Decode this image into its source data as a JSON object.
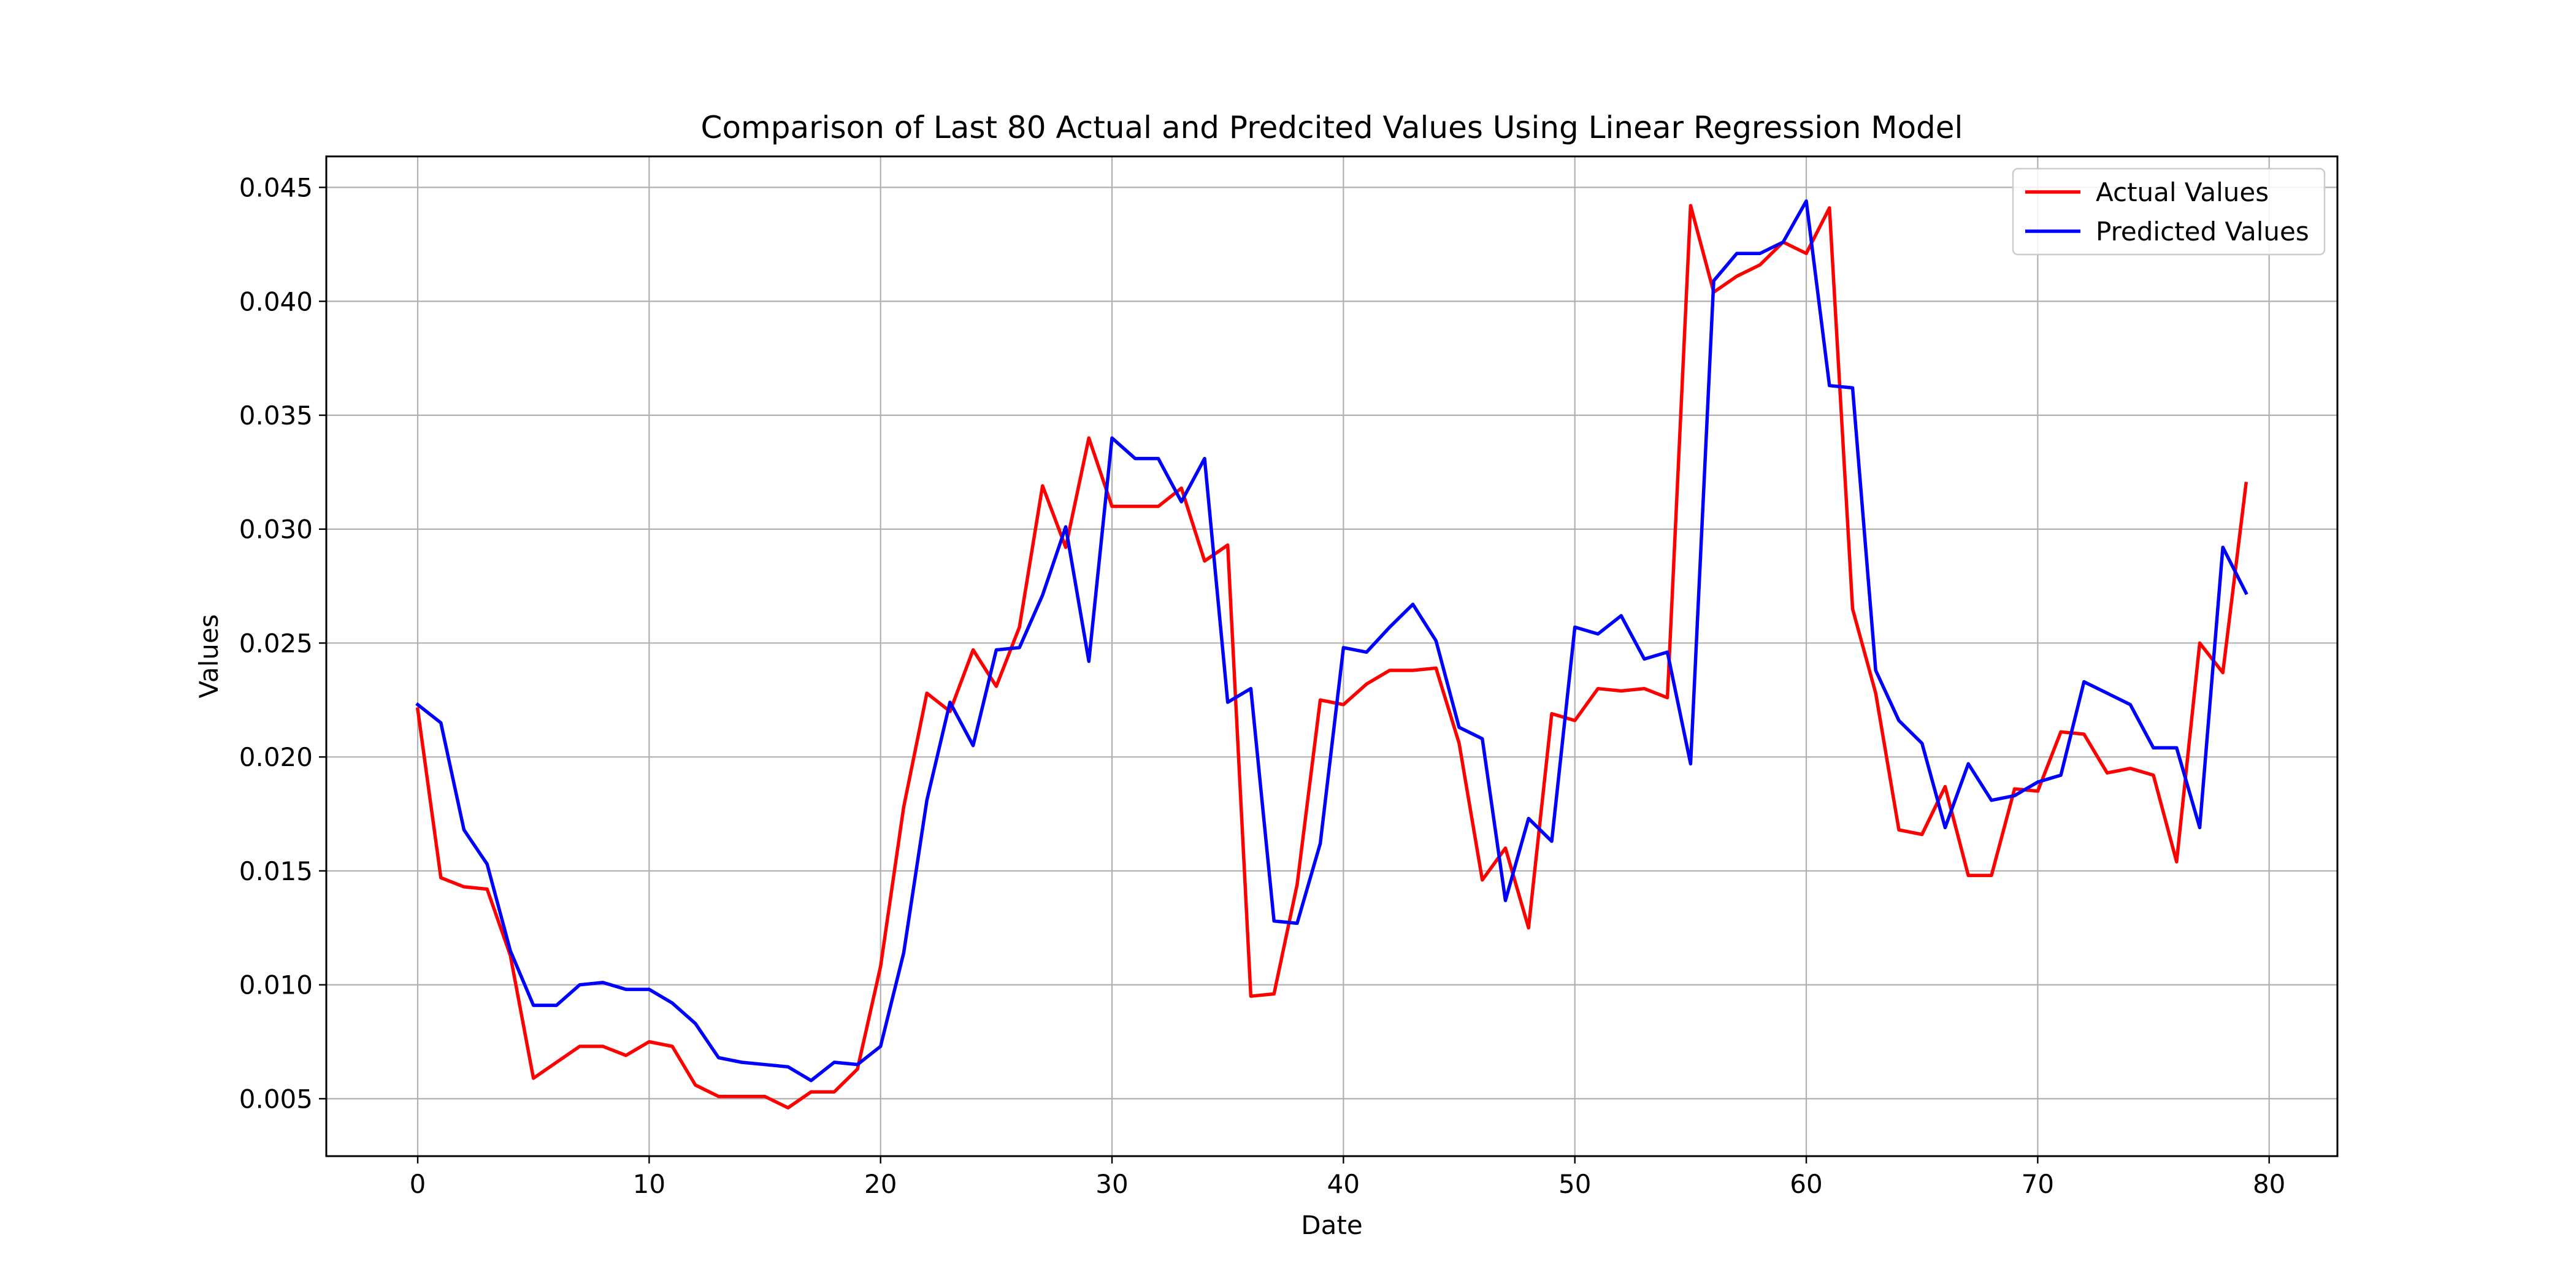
{
  "chart_data": {
    "type": "line",
    "title": "Comparison of Last 80 Actual and Predcited Values Using Linear Regression Model",
    "xlabel": "Date",
    "ylabel": "Values",
    "xlim": [
      -3.95,
      82.95
    ],
    "ylim": [
      0.00248,
      0.04636
    ],
    "xticks": [
      0,
      10,
      20,
      30,
      40,
      50,
      60,
      70,
      80
    ],
    "xtick_labels": [
      "0",
      "10",
      "20",
      "30",
      "40",
      "50",
      "60",
      "70",
      "80"
    ],
    "yticks": [
      0.005,
      0.01,
      0.015,
      0.02,
      0.025,
      0.03,
      0.035,
      0.04,
      0.045
    ],
    "ytick_labels": [
      "0.005",
      "0.010",
      "0.015",
      "0.020",
      "0.025",
      "0.030",
      "0.035",
      "0.040",
      "0.045"
    ],
    "grid": true,
    "legend_position": "top-right",
    "x": [
      0,
      1,
      2,
      3,
      4,
      5,
      6,
      7,
      8,
      9,
      10,
      11,
      12,
      13,
      14,
      15,
      16,
      17,
      18,
      19,
      20,
      21,
      22,
      23,
      24,
      25,
      26,
      27,
      28,
      29,
      30,
      31,
      32,
      33,
      34,
      35,
      36,
      37,
      38,
      39,
      40,
      41,
      42,
      43,
      44,
      45,
      46,
      47,
      48,
      49,
      50,
      51,
      52,
      53,
      54,
      55,
      56,
      57,
      58,
      59,
      60,
      61,
      62,
      63,
      64,
      65,
      66,
      67,
      68,
      69,
      70,
      71,
      72,
      73,
      74,
      75,
      76,
      77,
      78,
      79
    ],
    "series": [
      {
        "name": "Actual Values",
        "color": "#ff0000",
        "values": [
          0.0221,
          0.0147,
          0.0143,
          0.0142,
          0.0113,
          0.0059,
          0.0066,
          0.0073,
          0.0073,
          0.0069,
          0.0075,
          0.0073,
          0.0056,
          0.0051,
          0.0051,
          0.0051,
          0.0046,
          0.0053,
          0.0053,
          0.0063,
          0.0108,
          0.0178,
          0.0228,
          0.022,
          0.0247,
          0.0231,
          0.0257,
          0.0319,
          0.0292,
          0.034,
          0.031,
          0.031,
          0.031,
          0.0318,
          0.0286,
          0.0293,
          0.0095,
          0.0096,
          0.0144,
          0.0225,
          0.0223,
          0.0232,
          0.0238,
          0.0238,
          0.0239,
          0.0206,
          0.0146,
          0.016,
          0.0125,
          0.0219,
          0.0216,
          0.023,
          0.0229,
          0.023,
          0.0226,
          0.0442,
          0.0404,
          0.0411,
          0.0416,
          0.0426,
          0.0421,
          0.0441,
          0.0265,
          0.0228,
          0.0168,
          0.0166,
          0.0187,
          0.0148,
          0.0148,
          0.0186,
          0.0185,
          0.0211,
          0.021,
          0.0193,
          0.0195,
          0.0192,
          0.0154,
          0.025,
          0.0237,
          0.032
        ]
      },
      {
        "name": "Predicted Values",
        "color": "#0000ff",
        "values": [
          0.0223,
          0.0215,
          0.0168,
          0.0153,
          0.0115,
          0.0091,
          0.0091,
          0.01,
          0.0101,
          0.0098,
          0.0098,
          0.0092,
          0.0083,
          0.0068,
          0.0066,
          0.0065,
          0.0064,
          0.0058,
          0.0066,
          0.0065,
          0.0073,
          0.0114,
          0.0181,
          0.0224,
          0.0205,
          0.0247,
          0.0248,
          0.0271,
          0.0301,
          0.0242,
          0.034,
          0.0331,
          0.0331,
          0.0312,
          0.0331,
          0.0224,
          0.023,
          0.0128,
          0.0127,
          0.0162,
          0.0248,
          0.0246,
          0.0257,
          0.0267,
          0.0251,
          0.0213,
          0.0208,
          0.0137,
          0.0173,
          0.0163,
          0.0257,
          0.0254,
          0.0262,
          0.0243,
          0.0246,
          0.0197,
          0.0409,
          0.0421,
          0.0421,
          0.0426,
          0.0444,
          0.0363,
          0.0362,
          0.0238,
          0.0216,
          0.0206,
          0.0169,
          0.0197,
          0.0181,
          0.0183,
          0.0189,
          0.0192,
          0.0233,
          0.0228,
          0.0223,
          0.0204,
          0.0204,
          0.0169,
          0.0292,
          0.0272
        ]
      }
    ]
  }
}
